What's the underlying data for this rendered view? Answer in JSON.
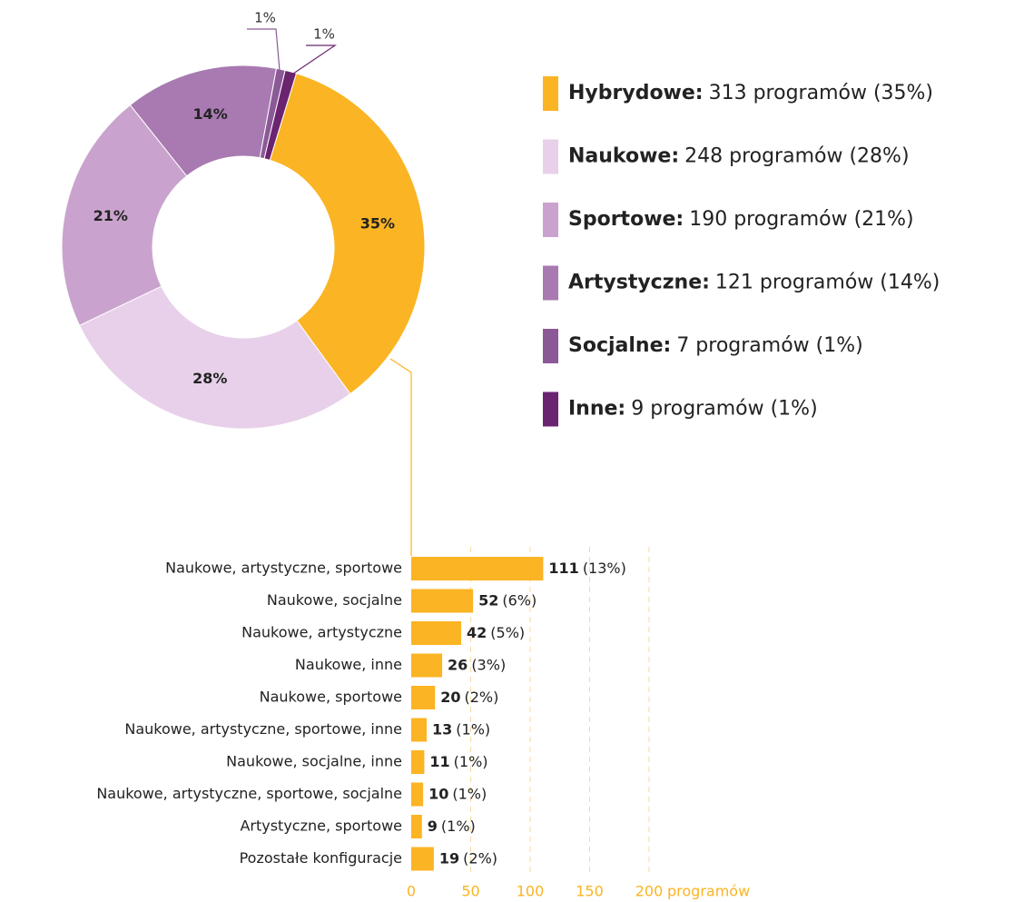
{
  "chart_data": [
    {
      "type": "donut",
      "categories": [
        "Hybrydowe:",
        "Naukowe:",
        "Sportowe:",
        "Artystyczne:",
        "Socjalne:",
        "Inne:"
      ],
      "values": [
        313,
        248,
        190,
        121,
        7,
        9
      ],
      "value_labels": [
        "313 programów (35%)",
        "248 programów (28%)",
        "190 programów (21%)",
        "121 programów (14%)",
        "7 programów (1%)",
        "9 programów (1%)"
      ],
      "percent_labels": [
        "35%",
        "28%",
        "21%",
        "14%",
        "1%",
        "1%"
      ],
      "colors": [
        "#fbb423",
        "#e8d0ea",
        "#c9a3cd",
        "#a87ab1",
        "#8c5997",
        "#6b2470"
      ]
    },
    {
      "type": "hbar",
      "categories": [
        "Naukowe, artystyczne, sportowe",
        "Naukowe, socjalne",
        "Naukowe, artystyczne",
        "Naukowe, inne",
        "Naukowe, sportowe",
        "Naukowe, artystyczne, sportowe, inne",
        "Naukowe, socjalne, inne",
        "Naukowe, artystyczne, sportowe, socjalne",
        "Artystyczne, sportowe",
        "Pozostałe konfiguracje"
      ],
      "values": [
        111,
        52,
        42,
        26,
        20,
        13,
        11,
        10,
        9,
        19
      ],
      "share_labels": [
        "(13%)",
        "(6%)",
        "(5%)",
        "(3%)",
        "(2%)",
        "(1%)",
        "(1%)",
        "(1%)",
        "(1%)",
        "(2%)"
      ],
      "color": "#fbb423",
      "xlim": [
        0,
        200
      ],
      "xticks": [
        0,
        50,
        100,
        150,
        200
      ],
      "xlabel": "programów",
      "grid": true
    }
  ]
}
